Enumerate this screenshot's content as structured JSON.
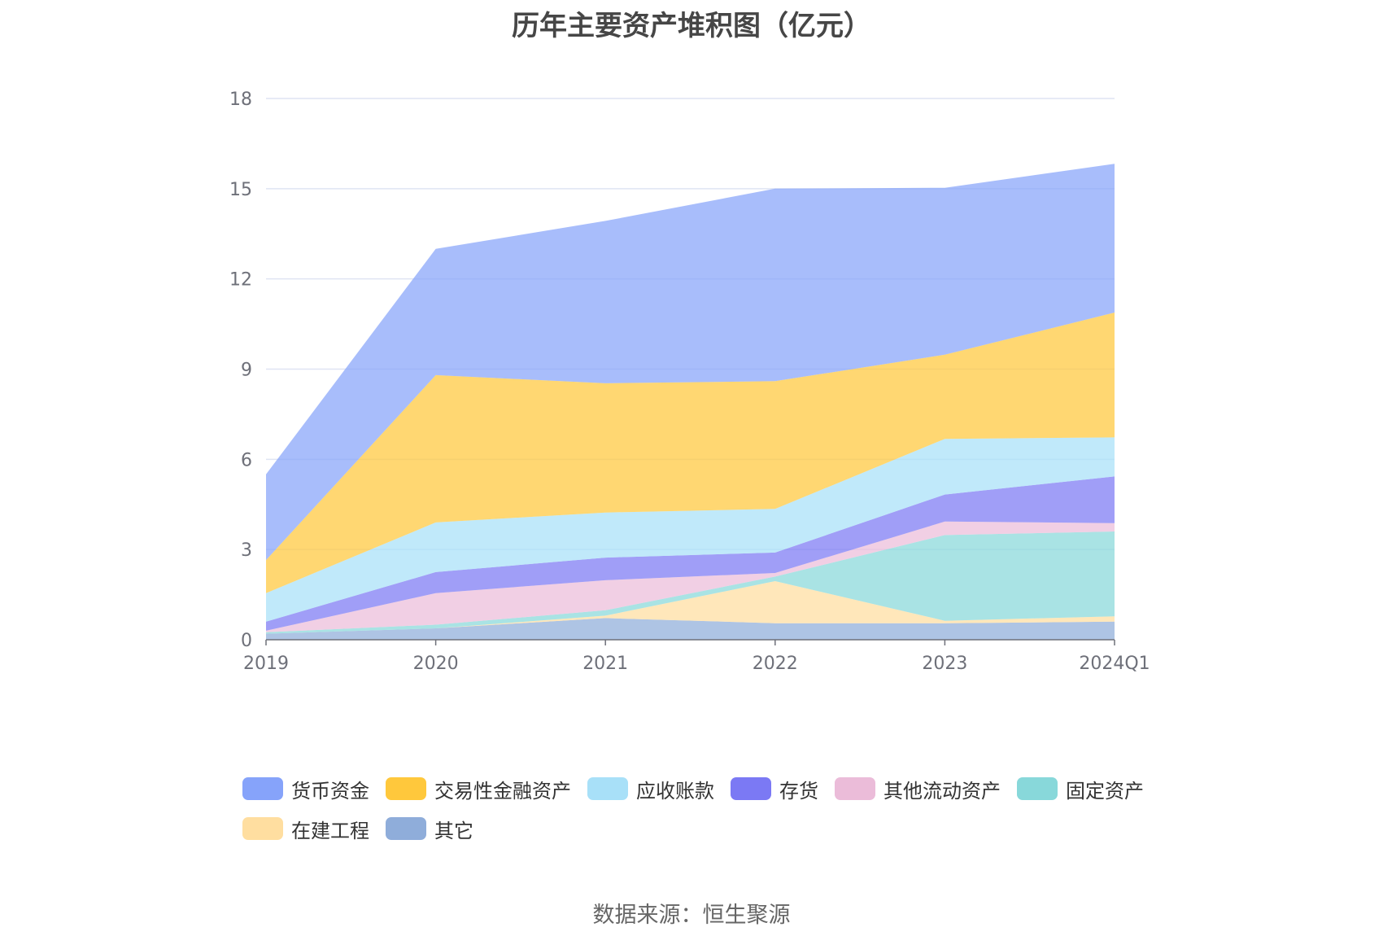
{
  "chart_data": {
    "type": "area",
    "stacked": true,
    "title": "历年主要资产堆积图（亿元）",
    "categories": [
      "2019",
      "2020",
      "2021",
      "2022",
      "2023",
      "2024Q1"
    ],
    "ylim": [
      0,
      18
    ],
    "yticks": [
      "0",
      "3",
      "6",
      "9",
      "12",
      "15",
      "18"
    ],
    "grid": true,
    "legend_position": "bottom",
    "series": [
      {
        "name": "其它",
        "color": "#8fadda",
        "values": [
          0.2,
          0.38,
          0.72,
          0.55,
          0.55,
          0.6
        ]
      },
      {
        "name": "在建工程",
        "color": "#ffdea0",
        "values": [
          0.0,
          0.0,
          0.08,
          1.4,
          0.08,
          0.18
        ]
      },
      {
        "name": "固定资产",
        "color": "#88d8da",
        "values": [
          0.05,
          0.12,
          0.18,
          0.15,
          2.85,
          2.82
        ]
      },
      {
        "name": "其他流动资产",
        "color": "#ebbcd9",
        "values": [
          0.05,
          1.05,
          1.0,
          0.12,
          0.45,
          0.28
        ]
      },
      {
        "name": "存货",
        "color": "#7b79f4",
        "values": [
          0.3,
          0.7,
          0.75,
          0.68,
          0.9,
          1.55
        ]
      },
      {
        "name": "应收账款",
        "color": "#a8e0f8",
        "values": [
          0.95,
          1.65,
          1.5,
          1.45,
          1.85,
          1.3
        ]
      },
      {
        "name": "交易性金融资产",
        "color": "#ffc83c",
        "values": [
          1.1,
          4.9,
          4.3,
          4.25,
          2.8,
          4.15
        ]
      },
      {
        "name": "货币资金",
        "color": "#86a3fa",
        "values": [
          2.85,
          4.2,
          5.4,
          6.4,
          5.55,
          4.95
        ]
      }
    ]
  },
  "legend": [
    {
      "label": "货币资金",
      "color": "#86a3fa"
    },
    {
      "label": "交易性金融资产",
      "color": "#ffc83c"
    },
    {
      "label": "应收账款",
      "color": "#a8e0f8"
    },
    {
      "label": "存货",
      "color": "#7b79f4"
    },
    {
      "label": "其他流动资产",
      "color": "#ebbcd9"
    },
    {
      "label": "固定资产",
      "color": "#88d8da"
    },
    {
      "label": "在建工程",
      "color": "#ffdea0"
    },
    {
      "label": "其它",
      "color": "#8fadda"
    }
  ],
  "source": "数据来源：恒生聚源"
}
